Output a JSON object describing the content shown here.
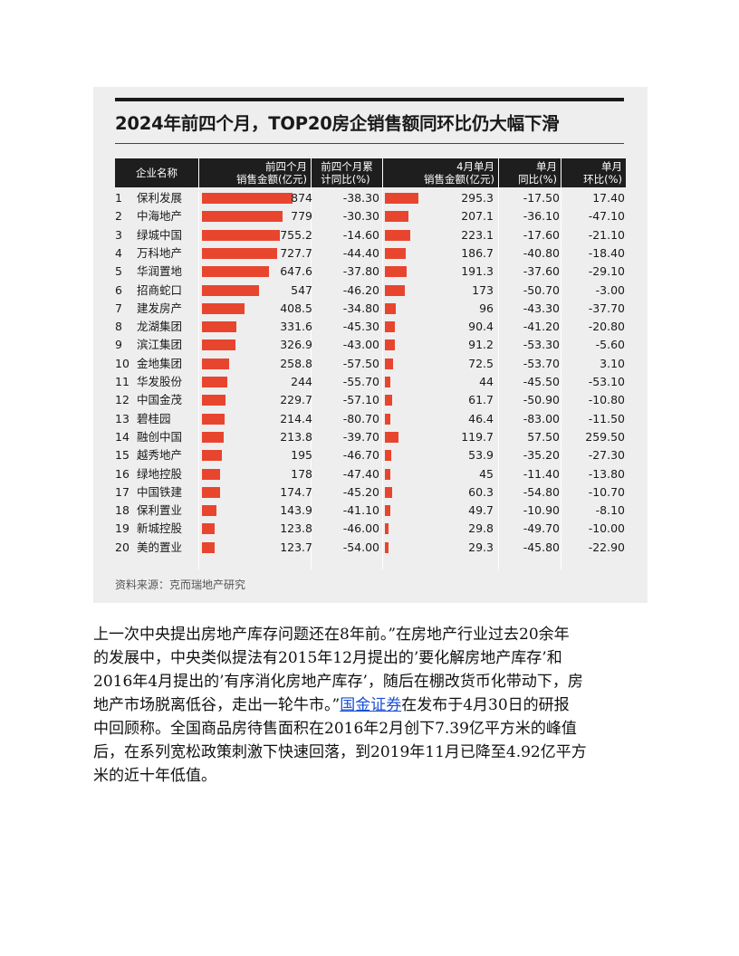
{
  "figure": {
    "title": "2024年前四个月，TOP20房企销售额同环比仍大幅下滑",
    "headers": {
      "company": "企业名称",
      "sales_4m_l1": "前四个月",
      "sales_4m_l2": "销售金额(亿元)",
      "yoy_4m_l1": "前四个月累",
      "yoy_4m_l2": "计同比(%)",
      "sales_apr_l1": "4月单月",
      "sales_apr_l2": "销售金额(亿元)",
      "yoy_apr_l1": "单月",
      "yoy_apr_l2": "同比(%)",
      "mom_apr_l1": "单月",
      "mom_apr_l2": "环比(%)"
    },
    "source": "资料来源：克而瑞地产研究",
    "accent_color": "#e8452f"
  },
  "chart_data": {
    "type": "table",
    "columns": [
      "企业名称",
      "前四个月销售金额(亿元)",
      "前四个月累计同比(%)",
      "4月单月销售金额(亿元)",
      "单月同比(%)",
      "单月环比(%)"
    ],
    "rows": [
      {
        "rank": "1",
        "name": "保利发展",
        "sales": 874,
        "sales_text": "874",
        "yoy": "-38.30",
        "apr": 295.3,
        "apr_text": "295.3",
        "apr_yoy": "-17.50",
        "apr_mom": "17.40"
      },
      {
        "rank": "2",
        "name": "中海地产",
        "sales": 779,
        "sales_text": "779",
        "yoy": "-30.30",
        "apr": 207.1,
        "apr_text": "207.1",
        "apr_yoy": "-36.10",
        "apr_mom": "-47.10"
      },
      {
        "rank": "3",
        "name": "绿城中国",
        "sales": 755.2,
        "sales_text": "755.2",
        "yoy": "-14.60",
        "apr": 223.1,
        "apr_text": "223.1",
        "apr_yoy": "-17.60",
        "apr_mom": "-21.10"
      },
      {
        "rank": "4",
        "name": "万科地产",
        "sales": 727.7,
        "sales_text": "727.7",
        "yoy": "-44.40",
        "apr": 186.7,
        "apr_text": "186.7",
        "apr_yoy": "-40.80",
        "apr_mom": "-18.40"
      },
      {
        "rank": "5",
        "name": "华润置地",
        "sales": 647.6,
        "sales_text": "647.6",
        "yoy": "-37.80",
        "apr": 191.3,
        "apr_text": "191.3",
        "apr_yoy": "-37.60",
        "apr_mom": "-29.10"
      },
      {
        "rank": "6",
        "name": "招商蛇口",
        "sales": 547,
        "sales_text": "547",
        "yoy": "-46.20",
        "apr": 173,
        "apr_text": "173",
        "apr_yoy": "-50.70",
        "apr_mom": "-3.00"
      },
      {
        "rank": "7",
        "name": "建发房产",
        "sales": 408.5,
        "sales_text": "408.5",
        "yoy": "-34.80",
        "apr": 96,
        "apr_text": "96",
        "apr_yoy": "-43.30",
        "apr_mom": "-37.70"
      },
      {
        "rank": "8",
        "name": "龙湖集团",
        "sales": 331.6,
        "sales_text": "331.6",
        "yoy": "-45.30",
        "apr": 90.4,
        "apr_text": "90.4",
        "apr_yoy": "-41.20",
        "apr_mom": "-20.80"
      },
      {
        "rank": "9",
        "name": "滨江集团",
        "sales": 326.9,
        "sales_text": "326.9",
        "yoy": "-43.00",
        "apr": 91.2,
        "apr_text": "91.2",
        "apr_yoy": "-53.30",
        "apr_mom": "-5.60"
      },
      {
        "rank": "10",
        "name": "金地集团",
        "sales": 258.8,
        "sales_text": "258.8",
        "yoy": "-57.50",
        "apr": 72.5,
        "apr_text": "72.5",
        "apr_yoy": "-53.70",
        "apr_mom": "3.10"
      },
      {
        "rank": "11",
        "name": "华发股份",
        "sales": 244,
        "sales_text": "244",
        "yoy": "-55.70",
        "apr": 44,
        "apr_text": "44",
        "apr_yoy": "-45.50",
        "apr_mom": "-53.10"
      },
      {
        "rank": "12",
        "name": "中国金茂",
        "sales": 229.7,
        "sales_text": "229.7",
        "yoy": "-57.10",
        "apr": 61.7,
        "apr_text": "61.7",
        "apr_yoy": "-50.90",
        "apr_mom": "-10.80"
      },
      {
        "rank": "13",
        "name": "碧桂园",
        "sales": 214.4,
        "sales_text": "214.4",
        "yoy": "-80.70",
        "apr": 46.4,
        "apr_text": "46.4",
        "apr_yoy": "-83.00",
        "apr_mom": "-11.50"
      },
      {
        "rank": "14",
        "name": "融创中国",
        "sales": 213.8,
        "sales_text": "213.8",
        "yoy": "-39.70",
        "apr": 119.7,
        "apr_text": "119.7",
        "apr_yoy": "57.50",
        "apr_mom": "259.50"
      },
      {
        "rank": "15",
        "name": "越秀地产",
        "sales": 195,
        "sales_text": "195",
        "yoy": "-46.70",
        "apr": 53.9,
        "apr_text": "53.9",
        "apr_yoy": "-35.20",
        "apr_mom": "-27.30"
      },
      {
        "rank": "16",
        "name": "绿地控股",
        "sales": 178,
        "sales_text": "178",
        "yoy": "-47.40",
        "apr": 45,
        "apr_text": "45",
        "apr_yoy": "-11.40",
        "apr_mom": "-13.80"
      },
      {
        "rank": "17",
        "name": "中国铁建",
        "sales": 174.7,
        "sales_text": "174.7",
        "yoy": "-45.20",
        "apr": 60.3,
        "apr_text": "60.3",
        "apr_yoy": "-54.80",
        "apr_mom": "-10.70"
      },
      {
        "rank": "18",
        "name": "保利置业",
        "sales": 143.9,
        "sales_text": "143.9",
        "yoy": "-41.10",
        "apr": 49.7,
        "apr_text": "49.7",
        "apr_yoy": "-10.90",
        "apr_mom": "-8.10"
      },
      {
        "rank": "19",
        "name": "新城控股",
        "sales": 123.8,
        "sales_text": "123.8",
        "yoy": "-46.00",
        "apr": 29.8,
        "apr_text": "29.8",
        "apr_yoy": "-49.70",
        "apr_mom": "-10.00"
      },
      {
        "rank": "20",
        "name": "美的置业",
        "sales": 123.7,
        "sales_text": "123.7",
        "yoy": "-54.00",
        "apr": 29.3,
        "apr_text": "29.3",
        "apr_yoy": "-45.80",
        "apr_mom": "-22.90"
      }
    ]
  },
  "article": {
    "line1": "上一次中央提出房地产库存问题还在8年前。”在房地产行业过去20余年",
    "line2": "的发展中，中央类似提法有2015年12月提出的’要化解房地产库存’和",
    "line3": "2016年4月提出的’有序消化房地产库存’，随后在棚改货币化带动下，房",
    "line4_pre": "地产市场脱离低谷，走出一轮牛市。”",
    "line4_link": "国金证券",
    "line4_post": "在发布于4月30日的研报",
    "line5": "中回顾称。全国商品房待售面积在2016年2月创下7.39亿平方米的峰值",
    "line6": "后，在系列宽松政策刺激下快速回落，到2019年11月已降至4.92亿平方",
    "line7": "米的近十年低值。"
  }
}
